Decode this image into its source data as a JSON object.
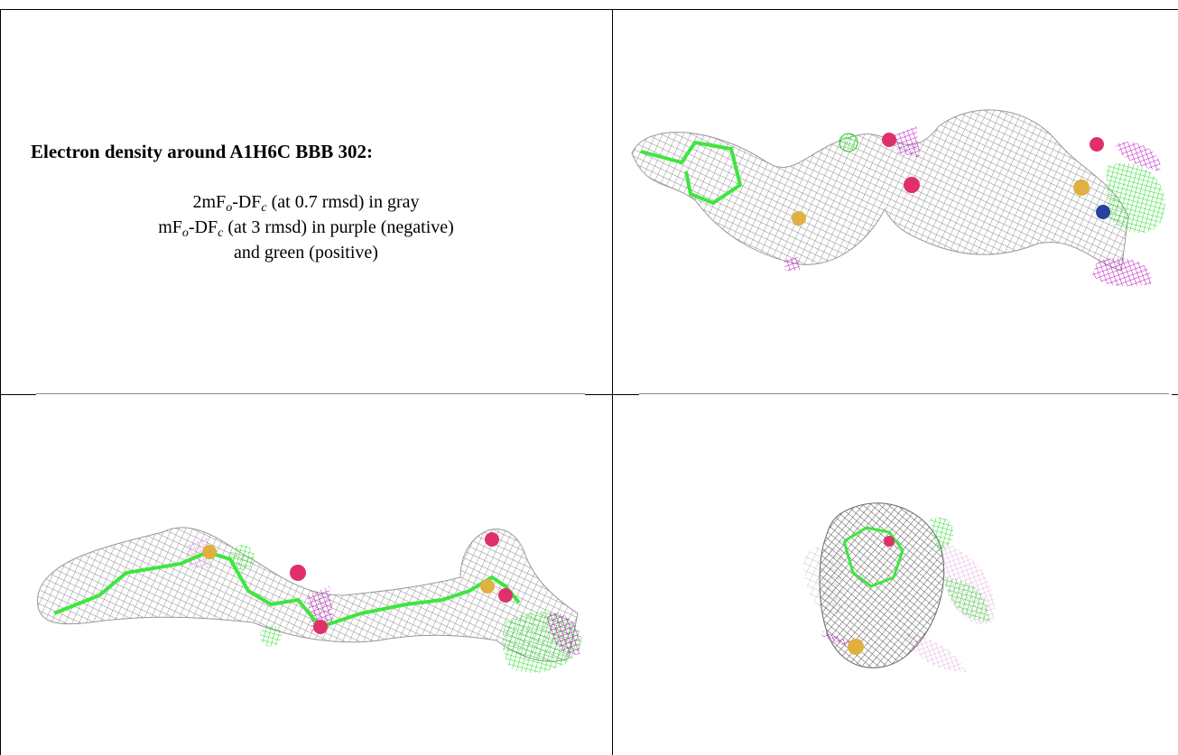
{
  "title": "Electron density around A1H6C BBB 302:",
  "legend": [
    [
      "2mF",
      "o",
      "-DF",
      "c",
      " (at 0.7 rmsd) in gray"
    ],
    [
      "mF",
      "o",
      "-DF",
      "c",
      " (at 3 rmsd) in purple (negative)"
    ],
    [
      "and green (positive)"
    ]
  ]
}
